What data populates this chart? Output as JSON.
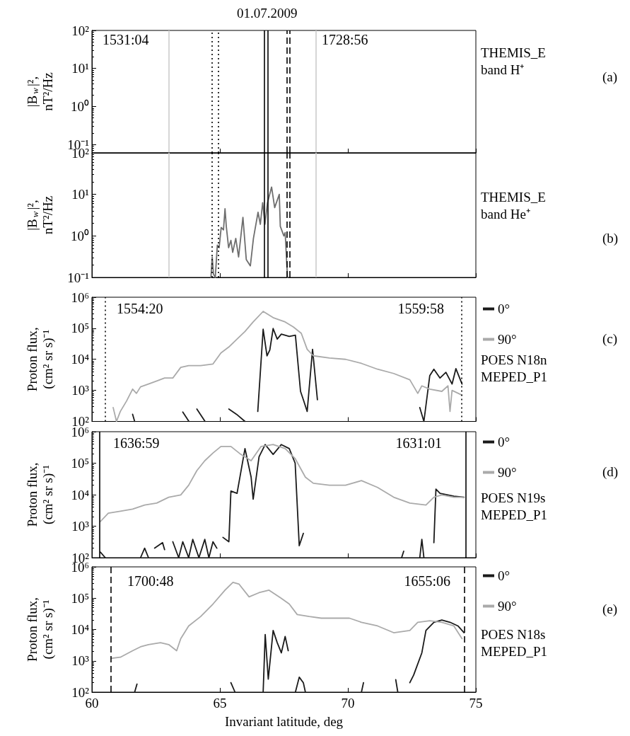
{
  "chart_data": [
    {
      "type": "line",
      "title": "01.07.2009",
      "subtitle": "THEMIS_E\nband H⁺",
      "ylabel": "|B$_{w}$|²,\nnT²/Hz",
      "annotations": [
        "1531:04",
        "1728:56",
        "(a)"
      ],
      "xlim": [
        60,
        75
      ],
      "xticks": [
        60,
        65,
        70,
        75
      ],
      "ylim": [
        0.06,
        100
      ],
      "yticks": [
        {
          "value": 0.1,
          "label": "10⁻¹"
        },
        {
          "value": 1,
          "label": "10⁰"
        },
        {
          "value": 10,
          "label": "10¹"
        },
        {
          "value": 100,
          "label": "10²"
        }
      ],
      "log": "y",
      "grid": false,
      "tick_labels": "y",
      "ref_lines": [
        {
          "axis": "x",
          "value": 63.0,
          "color": "#cccccc",
          "line_style": "solid"
        },
        {
          "axis": "x",
          "value": 68.75,
          "color": "#cccccc",
          "line_style": "solid"
        },
        {
          "axis": "x",
          "value": 64.7,
          "color": "#000000",
          "line_style": "dotted"
        },
        {
          "axis": "x",
          "value": 64.95,
          "color": "#000000",
          "line_style": "dotted"
        },
        {
          "axis": "x",
          "value": 66.72,
          "color": "#000000",
          "line_style": "solid"
        },
        {
          "axis": "x",
          "value": 66.86,
          "color": "#000000",
          "line_style": "solid"
        },
        {
          "axis": "x",
          "value": 67.63,
          "color": "#000000",
          "line_style": "dashed"
        },
        {
          "axis": "x",
          "value": 67.72,
          "color": "#000000",
          "line_style": "dashed"
        }
      ]
    },
    {
      "type": "line",
      "subtitle": "THEMIS_E\nband He⁺",
      "ylabel": "|B$_{w}$|²,\nnT²/Hz",
      "annotations": [
        "(b)"
      ],
      "xlim": [
        60,
        75
      ],
      "xticks": [
        60,
        65,
        70,
        75
      ],
      "ylim": [
        0.1,
        100
      ],
      "yticks": [
        {
          "value": 0.1,
          "label": "10⁻¹"
        },
        {
          "value": 1,
          "label": "10⁰"
        },
        {
          "value": 10,
          "label": "10¹"
        },
        {
          "value": 100,
          "label": "10²"
        }
      ],
      "log": "y",
      "grid": false,
      "tick_labels": "y",
      "series": [
        {
          "color": "#6e6e6e",
          "x": [
            64.65,
            64.7,
            64.75,
            64.82,
            64.9,
            64.97,
            65.05,
            65.14,
            65.2,
            65.25,
            65.34,
            65.43,
            65.5,
            65.62,
            65.73,
            65.9,
            66.03,
            66.19,
            66.31,
            66.49,
            66.58,
            66.67,
            66.76,
            66.86,
            67.02,
            67.14,
            67.32,
            67.36,
            67.5,
            67.55,
            67.64
          ],
          "values": [
            0.1,
            0.31,
            0.12,
            0.1,
            0.6,
            0.52,
            1.6,
            1.4,
            4.5,
            1.7,
            0.52,
            0.78,
            0.4,
            0.87,
            0.31,
            2.8,
            0.27,
            0.19,
            0.87,
            3.7,
            1.9,
            6.3,
            1.9,
            6.3,
            15,
            4.8,
            10,
            1.7,
            1.0,
            1.2,
            0.1
          ]
        }
      ],
      "ref_lines": [
        {
          "axis": "x",
          "value": 63.0,
          "color": "#cccccc",
          "line_style": "solid"
        },
        {
          "axis": "x",
          "value": 68.75,
          "color": "#cccccc",
          "line_style": "solid"
        },
        {
          "axis": "x",
          "value": 64.7,
          "color": "#000000",
          "line_style": "dotted"
        },
        {
          "axis": "x",
          "value": 64.95,
          "color": "#000000",
          "line_style": "dotted"
        },
        {
          "axis": "x",
          "value": 66.72,
          "color": "#000000",
          "line_style": "solid"
        },
        {
          "axis": "x",
          "value": 66.86,
          "color": "#000000",
          "line_style": "solid"
        },
        {
          "axis": "x",
          "value": 67.63,
          "color": "#000000",
          "line_style": "dashed"
        },
        {
          "axis": "x",
          "value": 67.72,
          "color": "#000000",
          "line_style": "dashed"
        }
      ]
    },
    {
      "type": "line",
      "subtitle": "POES N18n\nMEPED_P1",
      "ylabel": "Proton flux,\n(cm² sr s)⁻¹",
      "annotations": [
        "1554:20",
        "1559:58",
        "(c)"
      ],
      "xlim": [
        60,
        75
      ],
      "xticks": [
        60,
        65,
        70,
        75
      ],
      "ylim": [
        100,
        1000000
      ],
      "yticks": [
        {
          "value": 100,
          "label": "10²"
        },
        {
          "value": 1000,
          "label": "10³"
        },
        {
          "value": 10000,
          "label": "10⁴"
        },
        {
          "value": 100000,
          "label": "10⁵"
        },
        {
          "value": 1000000,
          "label": "10⁶"
        }
      ],
      "log": "y",
      "grid": false,
      "tick_labels": "y",
      "legend": "right",
      "series": [
        {
          "name": "0°",
          "color": "#1a1a1a",
          "x": [
            61.59,
            61.67,
            62.0,
            63.55,
            63.79,
            63.9,
            64.1,
            64.42,
            64.6,
            65.35,
            65.65,
            65.98,
            66.2,
            66.48,
            66.69,
            66.84,
            66.95,
            67.08,
            67.24,
            67.4,
            67.71,
            67.95,
            68.15,
            68.26,
            68.41,
            68.62,
            68.81,
            69.5,
            72.81,
            72.97,
            73.2,
            73.36,
            73.6,
            73.83,
            74.07,
            74.22,
            74.46
          ],
          "values": [
            170,
            100,
            null,
            200,
            100,
            null,
            250,
            100,
            null,
            250,
            170,
            100,
            null,
            210,
            93000,
            13000,
            20000,
            98000,
            45000,
            65000,
            55000,
            60000,
            930,
            500,
            210,
            21000,
            500,
            null,
            280,
            100,
            3000,
            4800,
            2500,
            3800,
            1600,
            5000,
            1600
          ]
        },
        {
          "name": "90°",
          "color": "#aaaaaa",
          "x": [
            60.83,
            60.96,
            61.11,
            61.35,
            61.59,
            61.74,
            61.9,
            62.21,
            62.53,
            62.84,
            63.16,
            63.47,
            63.78,
            64.25,
            64.73,
            65.04,
            65.35,
            65.67,
            65.98,
            66.3,
            66.69,
            67.08,
            67.55,
            67.87,
            68.18,
            68.41,
            68.65,
            69.28,
            69.91,
            70.53,
            71.16,
            71.79,
            72.42,
            72.73,
            72.89,
            73.2,
            73.67,
            73.91,
            73.99,
            74.07,
            74.46
          ],
          "values": [
            280,
            100,
            210,
            450,
            1100,
            800,
            1300,
            1600,
            2000,
            2500,
            2500,
            5500,
            6300,
            6300,
            7100,
            16000,
            25000,
            45000,
            79000,
            160000,
            350000,
            220000,
            160000,
            110000,
            69000,
            21000,
            13000,
            11000,
            10000,
            7400,
            4800,
            3500,
            2200,
            800,
            1400,
            1100,
            930,
            1400,
            210,
            1000,
            700
          ]
        }
      ],
      "ref_lines": [
        {
          "axis": "x",
          "value": 60.53,
          "color": "#000000",
          "line_style": "dotted"
        },
        {
          "axis": "x",
          "value": 74.43,
          "color": "#000000",
          "line_style": "dotted"
        }
      ]
    },
    {
      "type": "line",
      "subtitle": "POES N19s\nMEPED_P1",
      "ylabel": "Proton flux,\n(cm² sr s)⁻¹",
      "annotations": [
        "1636:59",
        "1631:01",
        "(d)"
      ],
      "xlim": [
        60,
        75
      ],
      "xticks": [
        60,
        65,
        70,
        75
      ],
      "ylim": [
        100,
        1000000
      ],
      "yticks": [
        {
          "value": 100,
          "label": "10²"
        },
        {
          "value": 1000,
          "label": "10³"
        },
        {
          "value": 10000,
          "label": "10⁴"
        },
        {
          "value": 100000,
          "label": "10⁵"
        },
        {
          "value": 1000000,
          "label": "10⁶"
        }
      ],
      "log": "y",
      "grid": false,
      "tick_labels": "y",
      "legend": "right",
      "series": [
        {
          "name": "0°",
          "color": "#1a1a1a",
          "x": [
            60.33,
            60.52,
            61.0,
            61.9,
            62.06,
            62.21,
            62.3,
            62.45,
            62.76,
            62.84,
            63.0,
            63.16,
            63.39,
            63.55,
            63.78,
            63.94,
            64.18,
            64.41,
            64.57,
            64.73,
            64.88,
            65.0,
            65.12,
            65.35,
            65.43,
            65.67,
            65.98,
            66.22,
            66.3,
            66.53,
            66.77,
            67.08,
            67.4,
            67.71,
            67.94,
            68.1,
            68.26,
            70.0,
            72.1,
            72.18,
            72.5,
            72.81,
            72.89,
            72.97,
            73.2,
            73.36,
            73.44,
            73.6,
            74.14,
            74.54
          ],
          "values": [
            150,
            100,
            null,
            100,
            200,
            100,
            null,
            200,
            300,
            180,
            null,
            320,
            100,
            320,
            100,
            380,
            100,
            380,
            100,
            320,
            200,
            null,
            440,
            320,
            13000,
            11000,
            290000,
            36000,
            7200,
            160000,
            390000,
            190000,
            390000,
            290000,
            100000,
            240,
            590,
            null,
            100,
            160,
            null,
            100,
            380,
            100,
            null,
            300,
            15000,
            11000,
            9000,
            8300
          ]
        },
        {
          "name": "90°",
          "color": "#aaaaaa",
          "x": [
            60.33,
            60.64,
            61.11,
            61.59,
            62.06,
            62.53,
            63.0,
            63.47,
            63.78,
            64.1,
            64.41,
            64.73,
            65.04,
            65.43,
            65.82,
            66.22,
            66.61,
            67.08,
            67.55,
            67.94,
            68.34,
            68.65,
            69.28,
            69.91,
            70.53,
            71.16,
            71.79,
            72.42,
            73.05,
            73.36,
            73.67,
            74.14,
            74.54
          ],
          "values": [
            1400,
            2600,
            3000,
            3500,
            4700,
            5400,
            8300,
            9800,
            20000,
            58000,
            120000,
            210000,
            340000,
            340000,
            190000,
            120000,
            340000,
            390000,
            290000,
            140000,
            36000,
            23000,
            20000,
            20000,
            28000,
            17000,
            8300,
            5400,
            4700,
            8300,
            9800,
            8300,
            8300
          ]
        }
      ],
      "ref_lines": [
        {
          "axis": "x",
          "value": 60.3,
          "color": "#000000",
          "line_style": "solid"
        },
        {
          "axis": "x",
          "value": 74.62,
          "color": "#000000",
          "line_style": "solid"
        }
      ]
    },
    {
      "type": "line",
      "subtitle": "POES N18s\nMEPED_P1",
      "xlabel": "Invariant latitude, deg",
      "ylabel": "Proton flux,\n(cm² sr s)⁻¹",
      "annotations": [
        "1700:48",
        "1655:06",
        "(e)"
      ],
      "xlim": [
        60,
        75
      ],
      "xticks": [
        60,
        65,
        70,
        75
      ],
      "ylim": [
        100,
        1000000
      ],
      "yticks": [
        {
          "value": 100,
          "label": "10²"
        },
        {
          "value": 1000,
          "label": "10³"
        },
        {
          "value": 10000,
          "label": "10⁴"
        },
        {
          "value": 100000,
          "label": "10⁵"
        },
        {
          "value": 1000000,
          "label": "10⁶"
        }
      ],
      "log": "y",
      "grid": false,
      "legend": "right",
      "series": [
        {
          "name": "0°",
          "color": "#1a1a1a",
          "x": [
            61.67,
            61.76,
            62.0,
            65.43,
            65.59,
            66.0,
            66.69,
            66.77,
            66.89,
            67.08,
            67.24,
            67.4,
            67.55,
            67.67,
            67.8,
            67.95,
            68.1,
            68.26,
            68.34,
            69.0,
            70.53,
            70.61,
            71.0,
            71.87,
            71.95,
            72.2,
            72.42,
            72.57,
            72.89,
            73.05,
            73.36,
            73.67,
            73.99,
            74.3,
            74.54
          ],
          "values": [
            100,
            180,
            null,
            200,
            100,
            null,
            100,
            6900,
            260,
            9300,
            3800,
            1800,
            6000,
            2100,
            null,
            100,
            300,
            200,
            100,
            null,
            100,
            200,
            null,
            250,
            100,
            null,
            200,
            350,
            1800,
            9300,
            17000,
            20000,
            17000,
            13000,
            7900
          ]
        },
        {
          "name": "90°",
          "color": "#aaaaaa",
          "x": [
            60.75,
            61.11,
            61.59,
            61.9,
            62.21,
            62.68,
            63.0,
            63.31,
            63.47,
            63.78,
            64.25,
            64.73,
            65.2,
            65.51,
            65.75,
            66.14,
            66.53,
            66.92,
            67.39,
            67.71,
            68.02,
            68.49,
            68.96,
            69.59,
            70.06,
            70.53,
            71.16,
            71.79,
            72.42,
            72.73,
            73.2,
            73.67,
            74.14,
            74.46
          ],
          "values": [
            1200,
            1300,
            2100,
            2800,
            3300,
            3800,
            3300,
            2100,
            5100,
            13000,
            26000,
            65000,
            180000,
            320000,
            280000,
            110000,
            150000,
            180000,
            100000,
            65000,
            30000,
            26000,
            23000,
            23000,
            23000,
            17000,
            13000,
            7900,
            9300,
            17000,
            19000,
            17000,
            13000,
            5100
          ]
        }
      ],
      "ref_lines": [
        {
          "axis": "x",
          "value": 60.75,
          "color": "#000000",
          "line_style": "dashed"
        },
        {
          "axis": "x",
          "value": 74.54,
          "color": "#000000",
          "line_style": "dashed"
        }
      ]
    }
  ]
}
